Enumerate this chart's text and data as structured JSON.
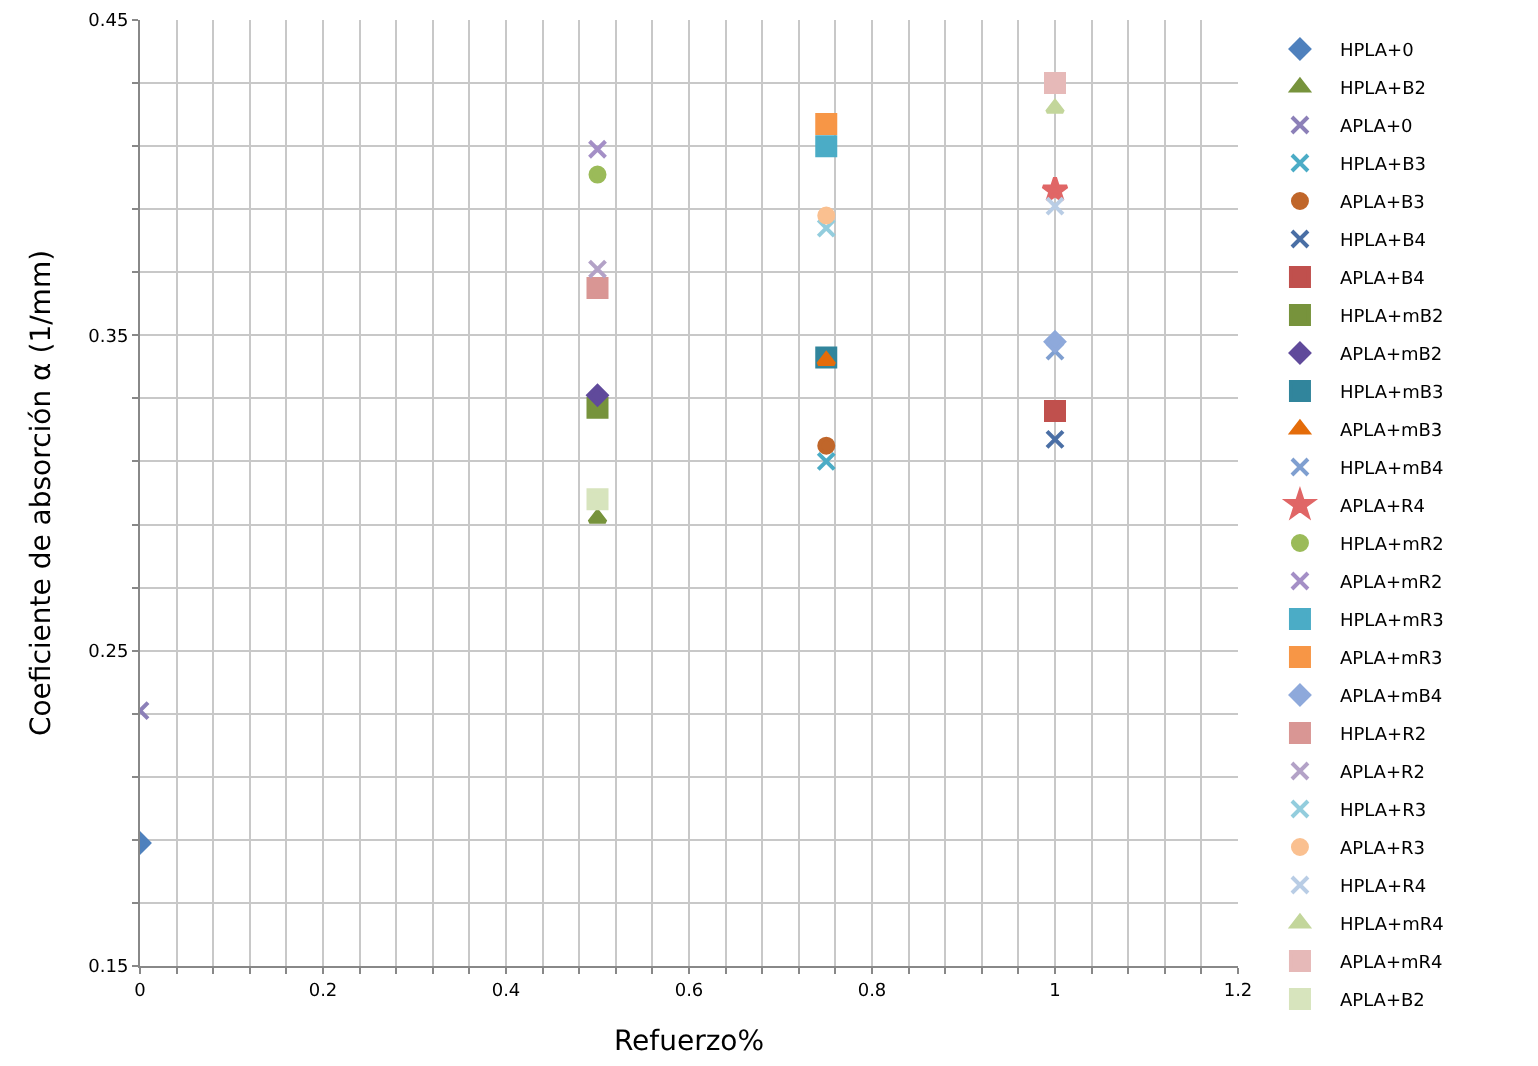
{
  "chart_data": {
    "type": "scatter",
    "xlabel": "Refuerzo%",
    "ylabel": "Coeficiente de absorción α (1/mm)",
    "xlim": [
      0,
      1.2
    ],
    "ylim": [
      0.15,
      0.45
    ],
    "xticks": [
      0,
      {
        "value": 0.04,
        "label": null
      },
      {
        "value": 0.08,
        "label": null
      },
      {
        "value": 0.12,
        "label": null
      },
      {
        "value": 0.16,
        "label": null
      },
      0.2,
      {
        "value": 0.24,
        "label": null
      },
      {
        "value": 0.28,
        "label": null
      },
      {
        "value": 0.32,
        "label": null
      },
      {
        "value": 0.36,
        "label": null
      },
      0.4,
      {
        "value": 0.44,
        "label": null
      },
      {
        "value": 0.48,
        "label": null
      },
      {
        "value": 0.52,
        "label": null
      },
      {
        "value": 0.56,
        "label": null
      },
      0.6,
      {
        "value": 0.64,
        "label": null
      },
      {
        "value": 0.68,
        "label": null
      },
      {
        "value": 0.72,
        "label": null
      },
      {
        "value": 0.76,
        "label": null
      },
      0.8,
      {
        "value": 0.84,
        "label": null
      },
      {
        "value": 0.88,
        "label": null
      },
      {
        "value": 0.92,
        "label": null
      },
      {
        "value": 0.96,
        "label": null
      },
      1,
      {
        "value": 1.04,
        "label": null
      },
      {
        "value": 1.08,
        "label": null
      },
      {
        "value": 1.12,
        "label": null
      },
      {
        "value": 1.16,
        "label": null
      },
      1.2
    ],
    "yticks": [
      0.15,
      {
        "value": 0.17,
        "label": null
      },
      {
        "value": 0.19,
        "label": null
      },
      {
        "value": 0.21,
        "label": null
      },
      {
        "value": 0.23,
        "label": null
      },
      0.25,
      {
        "value": 0.27,
        "label": null
      },
      {
        "value": 0.29,
        "label": null
      },
      {
        "value": 0.31,
        "label": null
      },
      {
        "value": 0.33,
        "label": null
      },
      0.35,
      {
        "value": 0.37,
        "label": null
      },
      {
        "value": 0.39,
        "label": null
      },
      {
        "value": 0.41,
        "label": null
      },
      {
        "value": 0.43,
        "label": null
      },
      0.45
    ],
    "grid": true,
    "legend": "right",
    "series": [
      {
        "name": "HPLA+0",
        "color": "#4f81bd",
        "marker": "diamond",
        "x": [
          0
        ],
        "values": [
          0.189
        ]
      },
      {
        "name": "HPLA+B2",
        "color": "#77933c",
        "marker": "triangle",
        "x": [
          0.5
        ],
        "values": [
          0.292
        ]
      },
      {
        "name": "APLA+0",
        "color": "#8c80b8",
        "marker": "cross",
        "x": [
          0
        ],
        "values": [
          0.231
        ]
      },
      {
        "name": "HPLA+B3",
        "color": "#4bacc6",
        "marker": "cross",
        "x": [
          0.75
        ],
        "values": [
          0.31
        ]
      },
      {
        "name": "APLA+B3",
        "color": "#c0662a",
        "marker": "circle",
        "x": [
          0.75
        ],
        "values": [
          0.315
        ]
      },
      {
        "name": "HPLA+B4",
        "color": "#4a6fa5",
        "marker": "cross",
        "x": [
          1
        ],
        "values": [
          0.317
        ]
      },
      {
        "name": "APLA+B4",
        "color": "#c0504d",
        "marker": "square",
        "x": [
          1
        ],
        "values": [
          0.326
        ]
      },
      {
        "name": "HPLA+mB2",
        "color": "#77933c",
        "marker": "square",
        "x": [
          0.5
        ],
        "values": [
          0.327
        ]
      },
      {
        "name": "APLA+mB2",
        "color": "#604a9b",
        "marker": "diamond",
        "x": [
          0.5
        ],
        "values": [
          0.331
        ]
      },
      {
        "name": "HPLA+mB3",
        "color": "#31859c",
        "marker": "square",
        "x": [
          0.75
        ],
        "values": [
          0.343
        ]
      },
      {
        "name": "APLA+mB3",
        "color": "#e46c0a",
        "marker": "triangle",
        "x": [
          0.75
        ],
        "values": [
          0.342
        ]
      },
      {
        "name": "HPLA+mB4",
        "color": "#7f9fd0",
        "marker": "cross",
        "x": [
          1
        ],
        "values": [
          0.345
        ]
      },
      {
        "name": "APLA+R4",
        "color": "#e06666",
        "marker": "star",
        "x": [
          1
        ],
        "values": [
          0.396
        ]
      },
      {
        "name": "HPLA+mR2",
        "color": "#9bbb59",
        "marker": "circle",
        "x": [
          0.5
        ],
        "values": [
          0.401
        ]
      },
      {
        "name": "APLA+mR2",
        "color": "#a48fc6",
        "marker": "cross",
        "x": [
          0.5
        ],
        "values": [
          0.409
        ]
      },
      {
        "name": "HPLA+mR3",
        "color": "#4bacc6",
        "marker": "square",
        "x": [
          0.75
        ],
        "values": [
          0.41
        ]
      },
      {
        "name": "APLA+mR3",
        "color": "#f79646",
        "marker": "square",
        "x": [
          0.75
        ],
        "values": [
          0.417
        ]
      },
      {
        "name": "APLA+mB4",
        "color": "#8ea9db",
        "marker": "diamond",
        "x": [
          1
        ],
        "values": [
          0.348
        ]
      },
      {
        "name": "HPLA+R2",
        "color": "#d99694",
        "marker": "square",
        "x": [
          0.5
        ],
        "values": [
          0.365
        ]
      },
      {
        "name": "APLA+R2",
        "color": "#b3a2c7",
        "marker": "cross",
        "x": [
          0.5
        ],
        "values": [
          0.371
        ]
      },
      {
        "name": "HPLA+R3",
        "color": "#93cddd",
        "marker": "cross",
        "x": [
          0.75
        ],
        "values": [
          0.384
        ]
      },
      {
        "name": "APLA+R3",
        "color": "#fac090",
        "marker": "circle",
        "x": [
          0.75
        ],
        "values": [
          0.388
        ]
      },
      {
        "name": "HPLA+R4",
        "color": "#b9cde5",
        "marker": "cross",
        "x": [
          1
        ],
        "values": [
          0.391
        ]
      },
      {
        "name": "HPLA+mR4",
        "color": "#c3d69b",
        "marker": "triangle",
        "x": [
          1
        ],
        "values": [
          0.422
        ]
      },
      {
        "name": "APLA+mR4",
        "color": "#e6b9b8",
        "marker": "square",
        "x": [
          1
        ],
        "values": [
          0.43
        ]
      },
      {
        "name": "APLA+B2",
        "color": "#d7e4bd",
        "marker": "square",
        "x": [
          0.5
        ],
        "values": [
          0.298
        ]
      }
    ]
  }
}
